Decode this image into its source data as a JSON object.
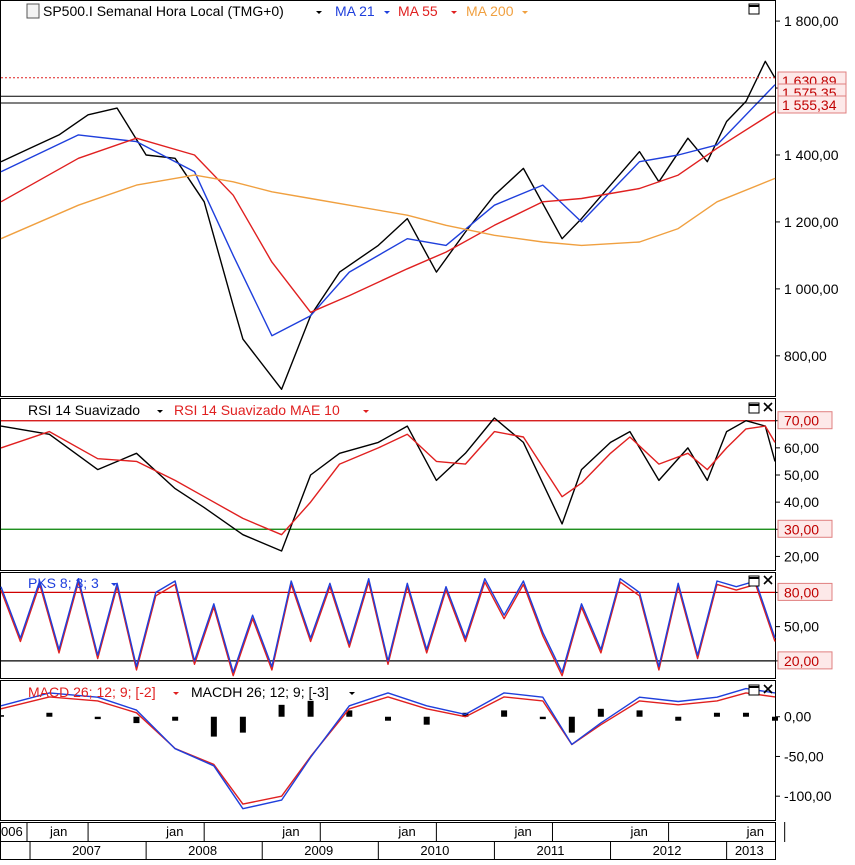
{
  "panels": {
    "price": {
      "title": "SP500.I Semanal Hora Local (TMG+0)",
      "indicators": [
        {
          "label": "MA 21",
          "color": "#1f3fdc"
        },
        {
          "label": "MA 55",
          "color": "#e02020"
        },
        {
          "label": "MA 200",
          "color": "#f0a040"
        }
      ],
      "ylabels": [
        "1 800,00",
        "1 600,00",
        "1 400,00",
        "1 200,00",
        "1 000,00",
        "800,00"
      ],
      "price_tags": [
        "1 630,89",
        "1 575,35",
        "1 555,34"
      ]
    },
    "rsi": {
      "indicators": [
        {
          "label": "RSI 14 Suavizado",
          "color": "#000000"
        },
        {
          "label": "RSI 14 Suavizado MAE 10",
          "color": "#e02020"
        }
      ],
      "ylabels": [
        "70,00",
        "60,00",
        "50,00",
        "40,00",
        "30,00",
        "20,00"
      ]
    },
    "pks": {
      "indicators": [
        {
          "label": "PKS 8; 3; 3",
          "color": "#1f3fdc"
        }
      ],
      "ylabels": [
        "80,00",
        "50,00",
        "20,00"
      ]
    },
    "macd": {
      "indicators": [
        {
          "label": "MACD 26; 12; 9; [-2]",
          "color": "#e02020"
        },
        {
          "label": "MACDH 26; 12; 9; [-3]",
          "color": "#000000"
        }
      ],
      "ylabels": [
        "0,00",
        "-50,00",
        "-100,00"
      ]
    }
  },
  "xaxis": {
    "month_label": "jan",
    "edge_label": "006",
    "years": [
      "2007",
      "2008",
      "2009",
      "2010",
      "2011",
      "2012",
      "2013"
    ]
  },
  "chart_data": {
    "type": "line",
    "title": "SP500.I Semanal Hora Local (TMG+0)",
    "x_range": [
      "2006-10",
      "2013-06"
    ],
    "price": {
      "ylim": [
        680,
        1860
      ],
      "series": [
        {
          "name": "SP500.I",
          "x": [
            "2006-10",
            "2007-01",
            "2007-04",
            "2007-07",
            "2007-10",
            "2008-01",
            "2008-04",
            "2008-07",
            "2008-10",
            "2008-11",
            "2009-03",
            "2009-06",
            "2009-09",
            "2010-01",
            "2010-04",
            "2010-07",
            "2010-10",
            "2011-01",
            "2011-04",
            "2011-08",
            "2011-10",
            "2012-01",
            "2012-04",
            "2012-06",
            "2012-09",
            "2012-11",
            "2013-01",
            "2013-03",
            "2013-05",
            "2013-06"
          ],
          "values": [
            1380,
            1420,
            1460,
            1520,
            1540,
            1400,
            1390,
            1260,
            950,
            850,
            700,
            920,
            1050,
            1130,
            1210,
            1050,
            1170,
            1280,
            1360,
            1150,
            1210,
            1310,
            1410,
            1320,
            1450,
            1380,
            1500,
            1560,
            1680,
            1630
          ]
        },
        {
          "name": "MA 21",
          "x": [
            "2006-10",
            "2007-06",
            "2007-12",
            "2008-06",
            "2008-10",
            "2009-02",
            "2009-06",
            "2009-10",
            "2010-04",
            "2010-08",
            "2011-01",
            "2011-06",
            "2011-10",
            "2012-04",
            "2012-08",
            "2012-12",
            "2013-06"
          ],
          "values": [
            1350,
            1460,
            1440,
            1350,
            1100,
            860,
            920,
            1050,
            1150,
            1130,
            1250,
            1310,
            1200,
            1380,
            1400,
            1430,
            1610
          ]
        },
        {
          "name": "MA 55",
          "x": [
            "2006-10",
            "2007-06",
            "2007-12",
            "2008-06",
            "2008-10",
            "2009-02",
            "2009-06",
            "2009-10",
            "2010-04",
            "2010-08",
            "2011-01",
            "2011-06",
            "2011-10",
            "2012-04",
            "2012-08",
            "2012-12",
            "2013-06"
          ],
          "values": [
            1260,
            1390,
            1450,
            1400,
            1280,
            1080,
            930,
            980,
            1060,
            1110,
            1190,
            1260,
            1270,
            1300,
            1340,
            1420,
            1530
          ]
        },
        {
          "name": "MA 200",
          "x": [
            "2006-10",
            "2007-06",
            "2007-12",
            "2008-06",
            "2008-10",
            "2009-02",
            "2009-06",
            "2009-10",
            "2010-04",
            "2010-08",
            "2011-01",
            "2011-06",
            "2011-10",
            "2012-04",
            "2012-08",
            "2012-12",
            "2013-06"
          ],
          "values": [
            1150,
            1250,
            1310,
            1340,
            1320,
            1290,
            1270,
            1250,
            1220,
            1190,
            1160,
            1140,
            1130,
            1140,
            1180,
            1260,
            1330
          ]
        }
      ],
      "tagged_levels": [
        1630.89,
        1575.35,
        1555.34
      ]
    },
    "rsi": {
      "ylim": [
        15,
        78
      ],
      "levels": [
        70,
        30
      ],
      "series": [
        {
          "name": "RSI 14 Suavizado",
          "x": [
            "2006-10",
            "2007-03",
            "2007-08",
            "2007-12",
            "2008-04",
            "2008-07",
            "2008-11",
            "2009-03",
            "2009-06",
            "2009-09",
            "2010-01",
            "2010-04",
            "2010-07",
            "2010-10",
            "2011-01",
            "2011-04",
            "2011-08",
            "2011-10",
            "2012-01",
            "2012-03",
            "2012-06",
            "2012-09",
            "2012-11",
            "2013-01",
            "2013-03",
            "2013-05",
            "2013-06"
          ],
          "values": [
            68,
            65,
            52,
            58,
            45,
            38,
            28,
            22,
            50,
            58,
            62,
            68,
            48,
            58,
            71,
            62,
            32,
            52,
            62,
            66,
            48,
            60,
            48,
            66,
            70,
            68,
            55
          ]
        },
        {
          "name": "RSI 14 Suavizado MAE 10",
          "x": [
            "2006-10",
            "2007-03",
            "2007-08",
            "2007-12",
            "2008-04",
            "2008-07",
            "2008-11",
            "2009-03",
            "2009-06",
            "2009-09",
            "2010-01",
            "2010-04",
            "2010-07",
            "2010-10",
            "2011-01",
            "2011-04",
            "2011-08",
            "2011-10",
            "2012-01",
            "2012-03",
            "2012-06",
            "2012-09",
            "2012-11",
            "2013-01",
            "2013-03",
            "2013-05",
            "2013-06"
          ],
          "values": [
            60,
            66,
            56,
            55,
            48,
            42,
            34,
            28,
            40,
            54,
            60,
            65,
            55,
            54,
            66,
            64,
            42,
            47,
            58,
            64,
            54,
            58,
            52,
            60,
            67,
            68,
            62
          ]
        }
      ]
    },
    "pks": {
      "ylim": [
        5,
        97
      ],
      "levels": [
        80,
        20
      ],
      "series": [
        {
          "name": "PKS 8; 3; 3",
          "x": [
            "2006-10",
            "2006-12",
            "2007-02",
            "2007-04",
            "2007-06",
            "2007-08",
            "2007-10",
            "2007-12",
            "2008-02",
            "2008-04",
            "2008-06",
            "2008-08",
            "2008-10",
            "2008-12",
            "2009-02",
            "2009-04",
            "2009-06",
            "2009-08",
            "2009-10",
            "2009-12",
            "2010-02",
            "2010-04",
            "2010-06",
            "2010-08",
            "2010-10",
            "2010-12",
            "2011-02",
            "2011-04",
            "2011-06",
            "2011-08",
            "2011-10",
            "2011-12",
            "2012-02",
            "2012-04",
            "2012-06",
            "2012-08",
            "2012-10",
            "2012-12",
            "2013-02",
            "2013-04",
            "2013-06"
          ],
          "values": [
            85,
            40,
            90,
            30,
            92,
            25,
            88,
            15,
            80,
            90,
            20,
            70,
            10,
            60,
            15,
            90,
            40,
            88,
            35,
            92,
            20,
            88,
            30,
            85,
            40,
            92,
            60,
            90,
            45,
            10,
            70,
            30,
            92,
            80,
            15,
            88,
            25,
            90,
            85,
            90,
            40
          ]
        }
      ]
    },
    "macd": {
      "ylim": [
        -130,
        45
      ],
      "levels": [
        0
      ],
      "series": [
        {
          "name": "MACD 26; 12; 9; [-2]",
          "x": [
            "2006-10",
            "2007-03",
            "2007-08",
            "2007-12",
            "2008-04",
            "2008-08",
            "2008-11",
            "2009-03",
            "2009-06",
            "2009-10",
            "2010-02",
            "2010-06",
            "2010-10",
            "2011-02",
            "2011-06",
            "2011-09",
            "2011-12",
            "2012-04",
            "2012-08",
            "2012-12",
            "2013-03",
            "2013-06"
          ],
          "values": [
            10,
            25,
            20,
            5,
            -40,
            -60,
            -110,
            -100,
            -50,
            10,
            25,
            10,
            0,
            25,
            20,
            -35,
            -10,
            20,
            15,
            20,
            30,
            25
          ]
        },
        {
          "name": "MACDH 26; 12; 9; [-3]",
          "x": [
            "2006-10",
            "2007-03",
            "2007-08",
            "2007-12",
            "2008-04",
            "2008-08",
            "2008-11",
            "2009-03",
            "2009-06",
            "2009-10",
            "2010-02",
            "2010-06",
            "2010-10",
            "2011-02",
            "2011-06",
            "2011-09",
            "2011-12",
            "2012-04",
            "2012-08",
            "2012-12",
            "2013-03",
            "2013-06"
          ],
          "values": [
            2,
            5,
            -3,
            -8,
            -5,
            -25,
            -20,
            15,
            20,
            8,
            -5,
            -10,
            5,
            8,
            -3,
            -20,
            10,
            8,
            -5,
            5,
            5,
            -5
          ]
        }
      ]
    }
  }
}
